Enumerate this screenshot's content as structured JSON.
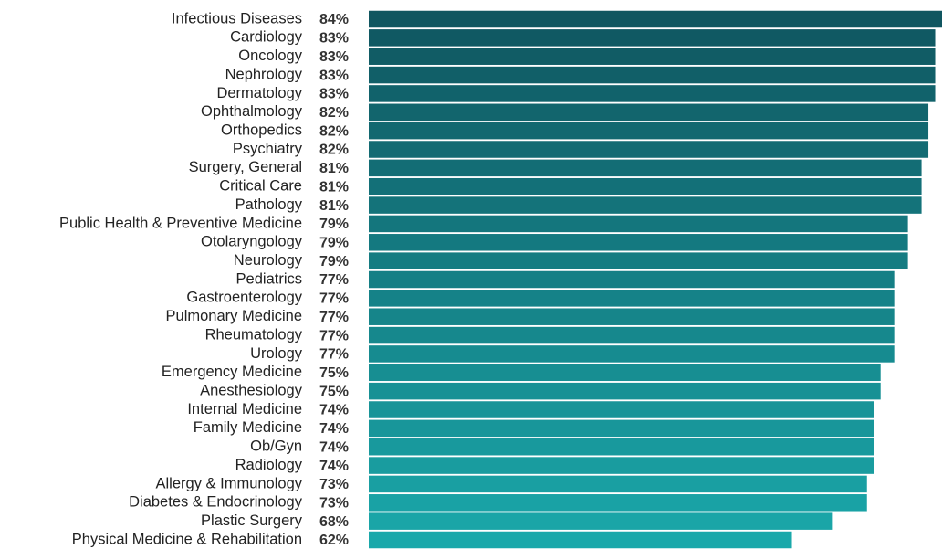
{
  "chart_data": {
    "type": "bar",
    "orientation": "horizontal",
    "categories": [
      "Infectious Diseases",
      "Cardiology",
      "Oncology",
      "Nephrology",
      "Dermatology",
      "Ophthalmology",
      "Orthopedics",
      "Psychiatry",
      "Surgery, General",
      "Critical Care",
      "Pathology",
      "Public Health & Preventive Medicine",
      "Otolaryngology",
      "Neurology",
      "Pediatrics",
      "Gastroenterology",
      "Pulmonary Medicine",
      "Rheumatology",
      "Urology",
      "Emergency Medicine",
      "Anesthesiology",
      "Internal Medicine",
      "Family Medicine",
      "Ob/Gyn",
      "Radiology",
      "Allergy & Immunology",
      "Diabetes & Endocrinology",
      "Plastic Surgery",
      "Physical Medicine & Rehabilitation"
    ],
    "values": [
      84,
      83,
      83,
      83,
      83,
      82,
      82,
      82,
      81,
      81,
      81,
      79,
      79,
      79,
      77,
      77,
      77,
      77,
      77,
      75,
      75,
      74,
      74,
      74,
      74,
      73,
      73,
      68,
      62
    ],
    "value_labels": [
      "84%",
      "83%",
      "83%",
      "83%",
      "83%",
      "82%",
      "82%",
      "82%",
      "81%",
      "81%",
      "81%",
      "79%",
      "79%",
      "79%",
      "77%",
      "77%",
      "77%",
      "77%",
      "77%",
      "75%",
      "75%",
      "74%",
      "74%",
      "74%",
      "74%",
      "73%",
      "73%",
      "68%",
      "62%"
    ],
    "colors": [
      "#105660",
      "#1aa8aa"
    ]
  }
}
